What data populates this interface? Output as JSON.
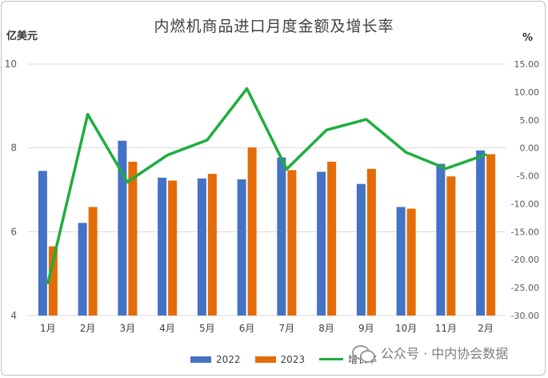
{
  "chart_data": {
    "type": "bar",
    "title": "内燃机商品进口月度金额及增长率",
    "ylabel": "亿美元",
    "y2label": "%",
    "categories": [
      "1月",
      "2月",
      "3月",
      "4月",
      "5月",
      "6月",
      "7月",
      "8月",
      "9月",
      "10月",
      "11月",
      "2月"
    ],
    "series": [
      {
        "name": "2022",
        "type": "bar",
        "axis": "left",
        "color": "#4472C4",
        "values": [
          7.45,
          6.21,
          8.17,
          7.29,
          7.27,
          7.25,
          7.77,
          7.43,
          7.14,
          6.59,
          7.62,
          7.94
        ]
      },
      {
        "name": "2023",
        "type": "bar",
        "axis": "left",
        "color": "#E36C09",
        "values": [
          5.65,
          6.59,
          7.67,
          7.22,
          7.38,
          8.01,
          7.47,
          7.67,
          7.5,
          6.55,
          7.32,
          7.85
        ]
      },
      {
        "name": "增长率",
        "type": "line",
        "axis": "right",
        "color": "#1DAE3D",
        "values": [
          -24.2,
          6.0,
          -6.1,
          -1.3,
          1.4,
          10.6,
          -3.8,
          3.2,
          5.1,
          -0.8,
          -3.7,
          -1.2
        ]
      }
    ],
    "ylim": [
      4,
      10
    ],
    "yticks": [
      "4",
      "6",
      "8",
      "10"
    ],
    "y2lim": [
      -30,
      15
    ],
    "y2ticks": [
      "15.00",
      "10.00",
      "5.00",
      "0.00",
      "-5.00",
      "-10.00",
      "-15.00",
      "-20.00",
      "-25.00",
      "-30.00"
    ],
    "legend_position": "bottom",
    "grid": true
  },
  "watermark": "公众号 · 中内协会数据"
}
